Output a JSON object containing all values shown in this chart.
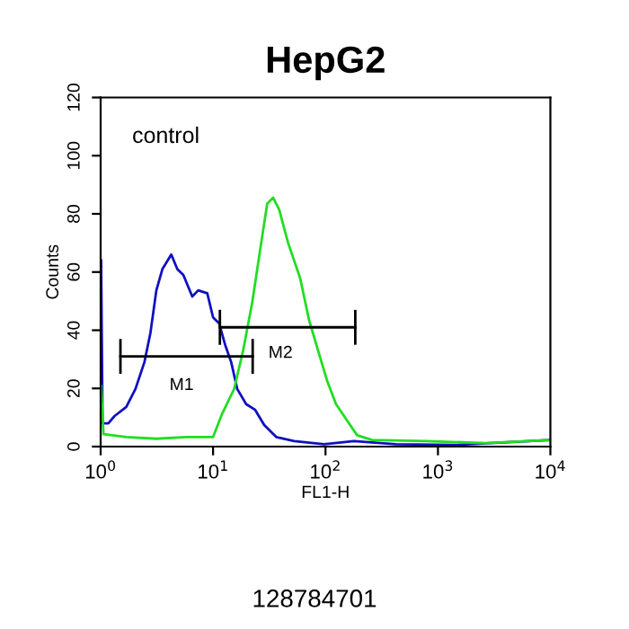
{
  "chart_data": {
    "type": "line",
    "title": "HepG2",
    "xlabel": "FL1-H",
    "ylabel": "Counts",
    "log": "x",
    "xlim": [
      1,
      10000
    ],
    "xticks": [
      {
        "value": 1,
        "label": "10$^{0}$"
      },
      {
        "value": 10,
        "label": "10$^{1}$"
      },
      {
        "value": 100,
        "label": "10$^{2}$"
      },
      {
        "value": 1000,
        "label": "10$^{3}$"
      },
      {
        "value": 10000,
        "label": "10$^{4}$"
      }
    ],
    "ylim": [
      0,
      120
    ],
    "yticks": [
      0,
      20,
      40,
      60,
      80,
      100,
      120
    ],
    "grid": false,
    "series": [
      {
        "color": "#1010c0",
        "x": [
          1.01,
          1.04,
          1.17,
          1.33,
          1.69,
          2.04,
          2.45,
          2.77,
          3.13,
          3.54,
          4.25,
          4.81,
          5.44,
          6.53,
          7.38,
          8.88,
          10.0,
          11.3,
          12.8,
          14.5,
          16.4,
          19.7,
          23.7,
          28.5,
          36.4,
          52.6,
          97.1,
          179,
          423,
          1443,
          10000
        ],
        "values": [
          64,
          8,
          8,
          10.5,
          13.6,
          19.8,
          29,
          39,
          53.7,
          61,
          66,
          61,
          59,
          51.6,
          53.7,
          52.7,
          44.4,
          42.4,
          35,
          29,
          19.8,
          14.6,
          12.6,
          7.4,
          3.3,
          1.9,
          0.8,
          1.9,
          0.8,
          0.6,
          2.3
        ]
      },
      {
        "color": "#22dd22",
        "x": [
          1.01,
          1.06,
          1.69,
          3.13,
          5.78,
          10.0,
          12.1,
          15.4,
          18.5,
          22.3,
          26.8,
          30.3,
          34.2,
          38.7,
          46.5,
          59.4,
          71.5,
          85.9,
          103,
          124,
          159,
          191,
          259,
          782,
          2667,
          10000
        ],
        "values": [
          20.8,
          4.3,
          3.3,
          2.7,
          3.3,
          3.3,
          11.5,
          19.8,
          33,
          49.6,
          70,
          83.5,
          85.6,
          81.5,
          70,
          58,
          43.4,
          33,
          22.8,
          14.6,
          8.4,
          3.9,
          2.3,
          1.9,
          1.2,
          2.3
        ]
      },
      {
        "type": "line",
        "color": "#000000",
        "x": [
          1.5,
          22.5
        ],
        "values": [
          31,
          31
        ],
        "errors": [
          6,
          6
        ]
      },
      {
        "type": "line",
        "color": "#000000",
        "x": [
          11.5,
          184
        ],
        "values": [
          41,
          41
        ],
        "errors": [
          6,
          6
        ]
      }
    ],
    "annotations": [
      "control",
      "M1",
      "M2",
      "128784701"
    ]
  }
}
